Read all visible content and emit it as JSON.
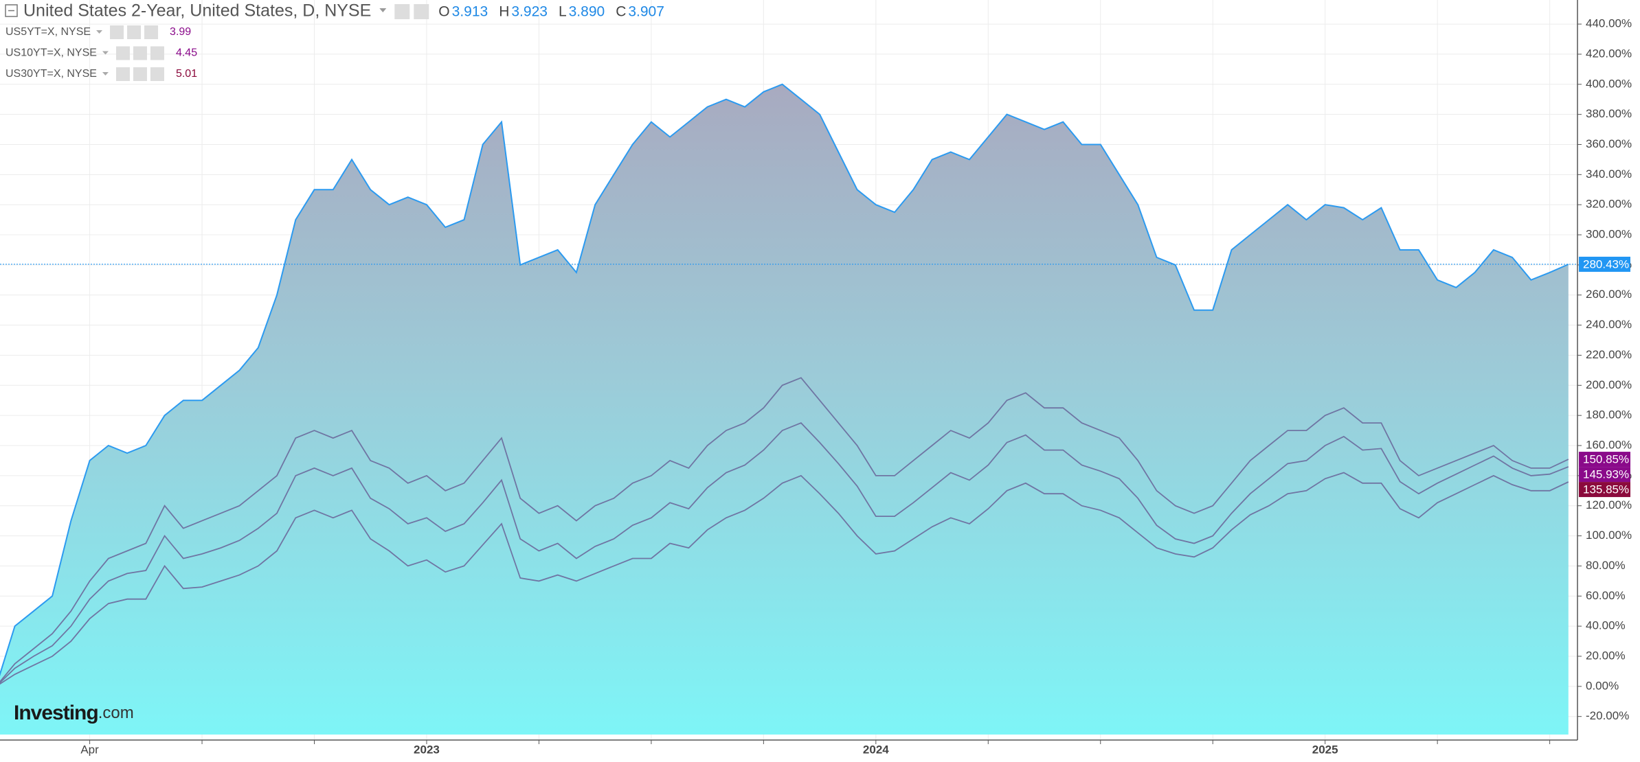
{
  "chart_data": {
    "type": "line",
    "title": "United States 2-Year, United States, D, NYSE",
    "ohlc": [
      {
        "letter": "O",
        "value": "3.913"
      },
      {
        "letter": "H",
        "value": "3.923"
      },
      {
        "letter": "L",
        "value": "3.890"
      },
      {
        "letter": "C",
        "value": "3.907"
      }
    ],
    "logo": {
      "brand": "Investing",
      "suffix": ".com"
    },
    "categories": [
      null,
      null,
      null,
      null,
      null,
      "Apr",
      null,
      null,
      null,
      null,
      null,
      null,
      null,
      null,
      null,
      null,
      null,
      null,
      null,
      null,
      null,
      null,
      null,
      "2023",
      null,
      null,
      null,
      null,
      null,
      null,
      null,
      null,
      null,
      null,
      null,
      null,
      null,
      null,
      null,
      null,
      null,
      null,
      null,
      null,
      null,
      null,
      null,
      "2024",
      null,
      null,
      null,
      null,
      null,
      null,
      null,
      null,
      null,
      null,
      null,
      null,
      null,
      null,
      null,
      null,
      null,
      null,
      null,
      null,
      null,
      null,
      null,
      "2025",
      null,
      null,
      null,
      null,
      null,
      null,
      null,
      null,
      null,
      null,
      null,
      null,
      null
    ],
    "series": [
      {
        "name": "United States 2-Year, United States, D, NYSE",
        "color": "#2b9af0",
        "fill": true,
        "end_label": "280.43%",
        "label_color": "#2196f3",
        "values": [
          0,
          40,
          50,
          60,
          110,
          150,
          160,
          155,
          160,
          180,
          190,
          190,
          200,
          210,
          225,
          260,
          310,
          330,
          330,
          350,
          330,
          320,
          325,
          320,
          305,
          310,
          360,
          375,
          280,
          285,
          290,
          275,
          320,
          340,
          360,
          375,
          365,
          375,
          385,
          390,
          385,
          395,
          400,
          390,
          380,
          355,
          330,
          320,
          315,
          330,
          350,
          355,
          350,
          365,
          380,
          375,
          370,
          375,
          360,
          360,
          340,
          320,
          285,
          280,
          250,
          250,
          290,
          300,
          310,
          320,
          310,
          320,
          318,
          310,
          318,
          290,
          290,
          270,
          265,
          275,
          290,
          285,
          270,
          275,
          280.43
        ]
      },
      {
        "name": "US5YT=X, NYSE",
        "quote": "3.99",
        "color": "#6f75a3",
        "end_label": "150.85%",
        "label_color": "#8a0a8a",
        "values": [
          0,
          15,
          25,
          35,
          50,
          70,
          85,
          90,
          95,
          120,
          105,
          110,
          115,
          120,
          130,
          140,
          165,
          170,
          165,
          170,
          150,
          145,
          135,
          140,
          130,
          135,
          150,
          165,
          125,
          115,
          120,
          110,
          120,
          125,
          135,
          140,
          150,
          145,
          160,
          170,
          175,
          185,
          200,
          205,
          190,
          175,
          160,
          140,
          140,
          150,
          160,
          170,
          165,
          175,
          190,
          195,
          185,
          185,
          175,
          170,
          165,
          150,
          130,
          120,
          115,
          120,
          135,
          150,
          160,
          170,
          170,
          180,
          185,
          175,
          175,
          150,
          140,
          145,
          150,
          155,
          160,
          150,
          145,
          145,
          150.85
        ]
      },
      {
        "name": "US10YT=X, NYSE",
        "quote": "4.45",
        "color": "#6f75a3",
        "end_label": "145.93%",
        "label_color": "#8a0a8a",
        "values": [
          0,
          12,
          20,
          27,
          40,
          58,
          70,
          75,
          77,
          100,
          85,
          88,
          92,
          97,
          105,
          115,
          140,
          145,
          140,
          145,
          125,
          118,
          108,
          112,
          103,
          108,
          122,
          137,
          98,
          90,
          95,
          85,
          93,
          98,
          107,
          112,
          122,
          118,
          132,
          142,
          147,
          157,
          170,
          175,
          162,
          148,
          133,
          113,
          113,
          122,
          132,
          142,
          137,
          147,
          162,
          167,
          157,
          157,
          147,
          143,
          138,
          125,
          107,
          98,
          95,
          100,
          115,
          128,
          138,
          148,
          150,
          160,
          166,
          157,
          158,
          136,
          128,
          135,
          141,
          147,
          153,
          145,
          140,
          141,
          145.93
        ]
      },
      {
        "name": "US30YT=X, NYSE",
        "quote": "5.01",
        "color": "#6f75a3",
        "end_label": "135.85%",
        "label_color": "#8b0a3c",
        "values": [
          0,
          8,
          14,
          20,
          30,
          45,
          55,
          58,
          58,
          80,
          65,
          66,
          70,
          74,
          80,
          90,
          112,
          117,
          112,
          117,
          98,
          90,
          80,
          84,
          76,
          80,
          94,
          108,
          72,
          70,
          74,
          70,
          75,
          80,
          85,
          85,
          95,
          92,
          104,
          112,
          117,
          125,
          135,
          140,
          128,
          115,
          100,
          88,
          90,
          98,
          106,
          112,
          108,
          118,
          130,
          135,
          128,
          128,
          120,
          117,
          112,
          102,
          92,
          88,
          86,
          92,
          104,
          114,
          120,
          128,
          130,
          138,
          142,
          135,
          135,
          118,
          112,
          122,
          128,
          134,
          140,
          134,
          130,
          130,
          135.85
        ]
      }
    ],
    "ylim": [
      -32,
      456
    ],
    "yticks": [
      {
        "value": -20,
        "label": "-20.00%"
      },
      {
        "value": 0,
        "label": "0.00%"
      },
      {
        "value": 20,
        "label": "20.00%"
      },
      {
        "value": 40,
        "label": "40.00%"
      },
      {
        "value": 60,
        "label": "60.00%"
      },
      {
        "value": 80,
        "label": "80.00%"
      },
      {
        "value": 100,
        "label": "100.00%"
      },
      {
        "value": 120,
        "label": "120.00%"
      },
      {
        "value": 140,
        "label": "140.00%"
      },
      {
        "value": 160,
        "label": "160.00%"
      },
      {
        "value": 180,
        "label": "180.00%"
      },
      {
        "value": 200,
        "label": "200.00%"
      },
      {
        "value": 220,
        "label": "220.00%"
      },
      {
        "value": 240,
        "label": "240.00%"
      },
      {
        "value": 260,
        "label": "260.00%"
      },
      {
        "value": 280,
        "label": "280.00%"
      },
      {
        "value": 300,
        "label": "300.00%"
      },
      {
        "value": 320,
        "label": "320.00%"
      },
      {
        "value": 340,
        "label": "340.00%"
      },
      {
        "value": 360,
        "label": "360.00%"
      },
      {
        "value": 380,
        "label": "380.00%"
      },
      {
        "value": 400,
        "label": "400.00%"
      },
      {
        "value": 420,
        "label": "420.00%"
      },
      {
        "value": 440,
        "label": "440.00%"
      }
    ],
    "grid": true
  }
}
